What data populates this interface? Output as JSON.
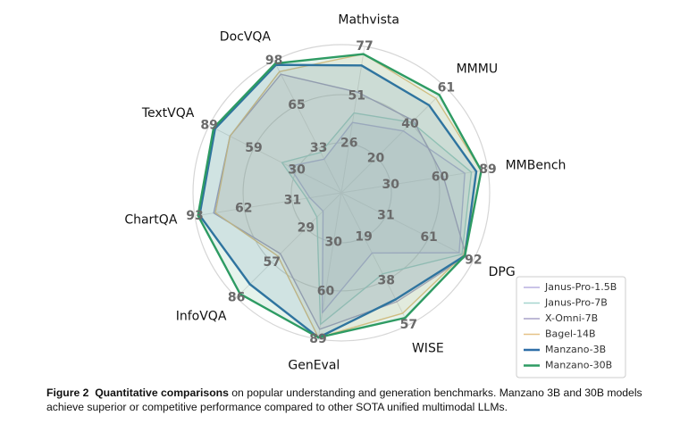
{
  "chart_data": {
    "type": "radar",
    "axes": [
      {
        "name": "Mathvista",
        "lim": [
          0,
          77
        ],
        "ticks": [
          26,
          51,
          77
        ]
      },
      {
        "name": "MMMU",
        "lim": [
          0,
          61
        ],
        "ticks": [
          20,
          40,
          61
        ]
      },
      {
        "name": "MMBench",
        "lim": [
          0,
          89
        ],
        "ticks": [
          30,
          60,
          89
        ]
      },
      {
        "name": "DPG",
        "lim": [
          0,
          92
        ],
        "ticks": [
          31,
          61,
          92
        ]
      },
      {
        "name": "WISE",
        "lim": [
          0,
          57
        ],
        "ticks": [
          19,
          38,
          57
        ]
      },
      {
        "name": "GenEval",
        "lim": [
          0,
          89
        ],
        "ticks": [
          30,
          60,
          89
        ]
      },
      {
        "name": "InfoVQA",
        "lim": [
          0,
          86
        ],
        "ticks": [
          29,
          57,
          86
        ]
      },
      {
        "name": "ChartQA",
        "lim": [
          0,
          93
        ],
        "ticks": [
          31,
          62,
          93
        ]
      },
      {
        "name": "TextVQA",
        "lim": [
          0,
          89
        ],
        "ticks": [
          30,
          59,
          89
        ]
      },
      {
        "name": "DocVQA",
        "lim": [
          0,
          98
        ],
        "ticks": [
          33,
          65,
          98
        ]
      }
    ],
    "series": [
      {
        "name": "Janus-Pro-1.5B",
        "color": "#b9b0e0",
        "values": [
          37,
          36,
          75,
          82,
          26,
          73,
          15,
          20,
          35,
          25
        ]
      },
      {
        "name": "Janus-Pro-7B",
        "color": "#a6d6cf",
        "values": [
          42,
          41,
          79,
          84,
          35,
          80,
          20,
          22,
          40,
          30
        ]
      },
      {
        "name": "X-Omni-7B",
        "color": "#a8a2c8",
        "values": [
          53,
          42,
          62,
          87,
          47,
          83,
          50,
          81,
          75,
          88
        ]
      },
      {
        "name": "Bagel-14B",
        "color": "#e6c287",
        "values": [
          73,
          55,
          85,
          85,
          52,
          88,
          52,
          80,
          75,
          90
        ]
      },
      {
        "name": "Manzano-3B",
        "color": "#2f6fa8",
        "values": [
          67,
          51,
          82,
          86,
          46,
          88,
          75,
          90,
          85,
          95
        ]
      },
      {
        "name": "Manzano-30B",
        "color": "#2e9b63",
        "values": [
          73,
          57,
          85,
          86,
          54,
          88,
          83,
          91,
          86,
          96
        ]
      }
    ],
    "legend": "lower right",
    "caption": {
      "label": "Figure 2",
      "title": "Quantitative comparisons",
      "text": "on popular understanding and generation benchmarks. Manzano 3B and 30B models achieve superior or competitive performance compared to other SOTA unified multimodal LLMs."
    }
  }
}
